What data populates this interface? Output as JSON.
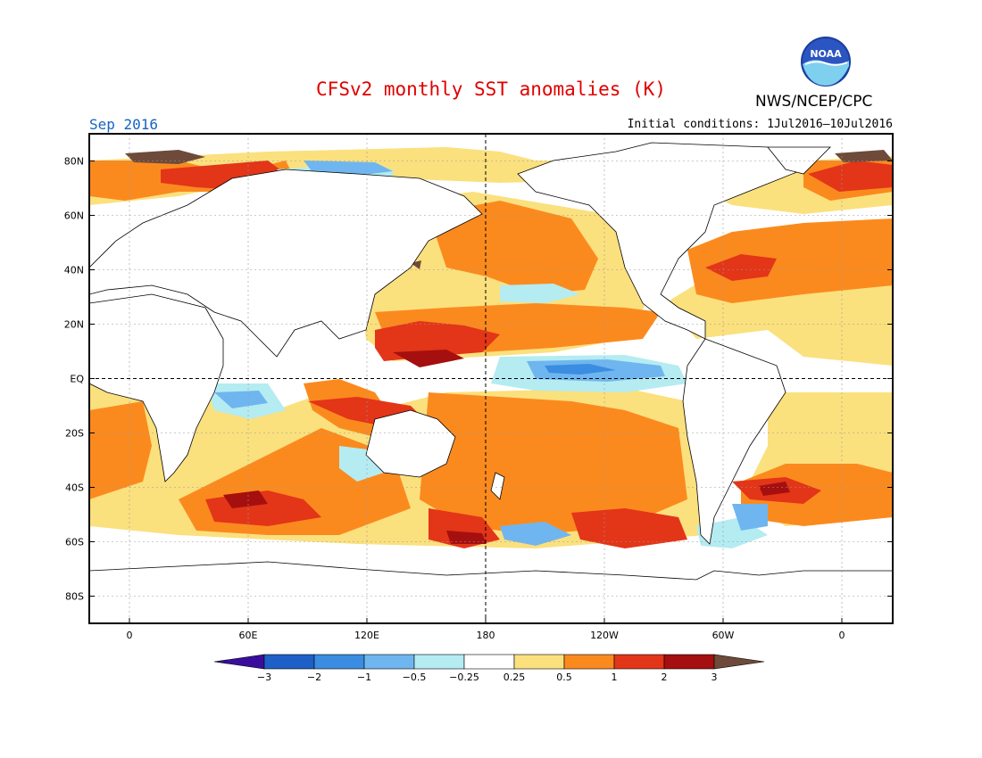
{
  "header": {
    "title": "CFSv2 monthly SST anomalies (K)",
    "organization": "NWS/NCEP/CPC",
    "logo_text": "NOAA",
    "valid_month": "Sep 2016",
    "initial_conditions": "Initial conditions: 1Jul2016–10Jul2016"
  },
  "map": {
    "projection": "cylindrical equidistant",
    "lat_labels": [
      "80N",
      "60N",
      "40N",
      "20N",
      "EQ",
      "20S",
      "40S",
      "60S",
      "80S"
    ],
    "lon_labels": [
      "0",
      "60E",
      "120E",
      "180",
      "120W",
      "60W",
      "0"
    ],
    "reference_lines": [
      "EQ",
      "180"
    ]
  },
  "colorbar": {
    "tick_labels": [
      "−3",
      "−2",
      "−1",
      "−0.5",
      "−0.25",
      "0.25",
      "0.5",
      "1",
      "2",
      "3"
    ],
    "colors": [
      "#3a0e9c",
      "#1f5fc8",
      "#3a8de0",
      "#6fb6f0",
      "#b4ecf2",
      "#ffffff",
      "#fbe07e",
      "#fb8a1e",
      "#e33518",
      "#a50f0f",
      "#6e4a3a"
    ]
  },
  "colors": {
    "title": "#e00000",
    "month": "#1565c0"
  }
}
